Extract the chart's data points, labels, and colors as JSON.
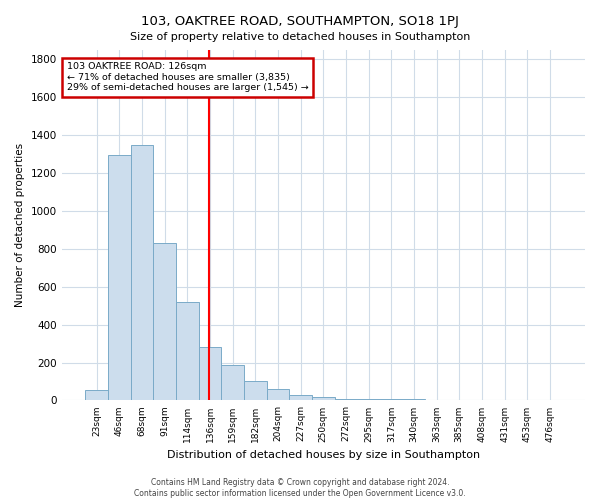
{
  "title": "103, OAKTREE ROAD, SOUTHAMPTON, SO18 1PJ",
  "subtitle": "Size of property relative to detached houses in Southampton",
  "xlabel": "Distribution of detached houses by size in Southampton",
  "ylabel": "Number of detached properties",
  "bar_labels": [
    "23sqm",
    "46sqm",
    "68sqm",
    "91sqm",
    "114sqm",
    "136sqm",
    "159sqm",
    "182sqm",
    "204sqm",
    "227sqm",
    "250sqm",
    "272sqm",
    "295sqm",
    "317sqm",
    "340sqm",
    "363sqm",
    "385sqm",
    "408sqm",
    "431sqm",
    "453sqm",
    "476sqm"
  ],
  "bar_values": [
    55,
    1295,
    1350,
    830,
    520,
    280,
    185,
    105,
    60,
    30,
    20,
    10,
    10,
    5,
    5,
    0,
    0,
    0,
    0,
    0,
    0
  ],
  "bar_color": "#ccdded",
  "bar_edge_color": "#7aaac8",
  "red_line_index": 4.95,
  "annotation_line1": "103 OAKTREE ROAD: 126sqm",
  "annotation_line2": "← 71% of detached houses are smaller (3,835)",
  "annotation_line3": "29% of semi-detached houses are larger (1,545) →",
  "annotation_box_color": "white",
  "annotation_box_edge": "#cc0000",
  "ylim": [
    0,
    1850
  ],
  "yticks": [
    0,
    200,
    400,
    600,
    800,
    1000,
    1200,
    1400,
    1600,
    1800
  ],
  "footer1": "Contains HM Land Registry data © Crown copyright and database right 2024.",
  "footer2": "Contains public sector information licensed under the Open Government Licence v3.0.",
  "background_color": "#ffffff",
  "plot_bg_color": "#ffffff",
  "grid_color": "#d0dce8"
}
